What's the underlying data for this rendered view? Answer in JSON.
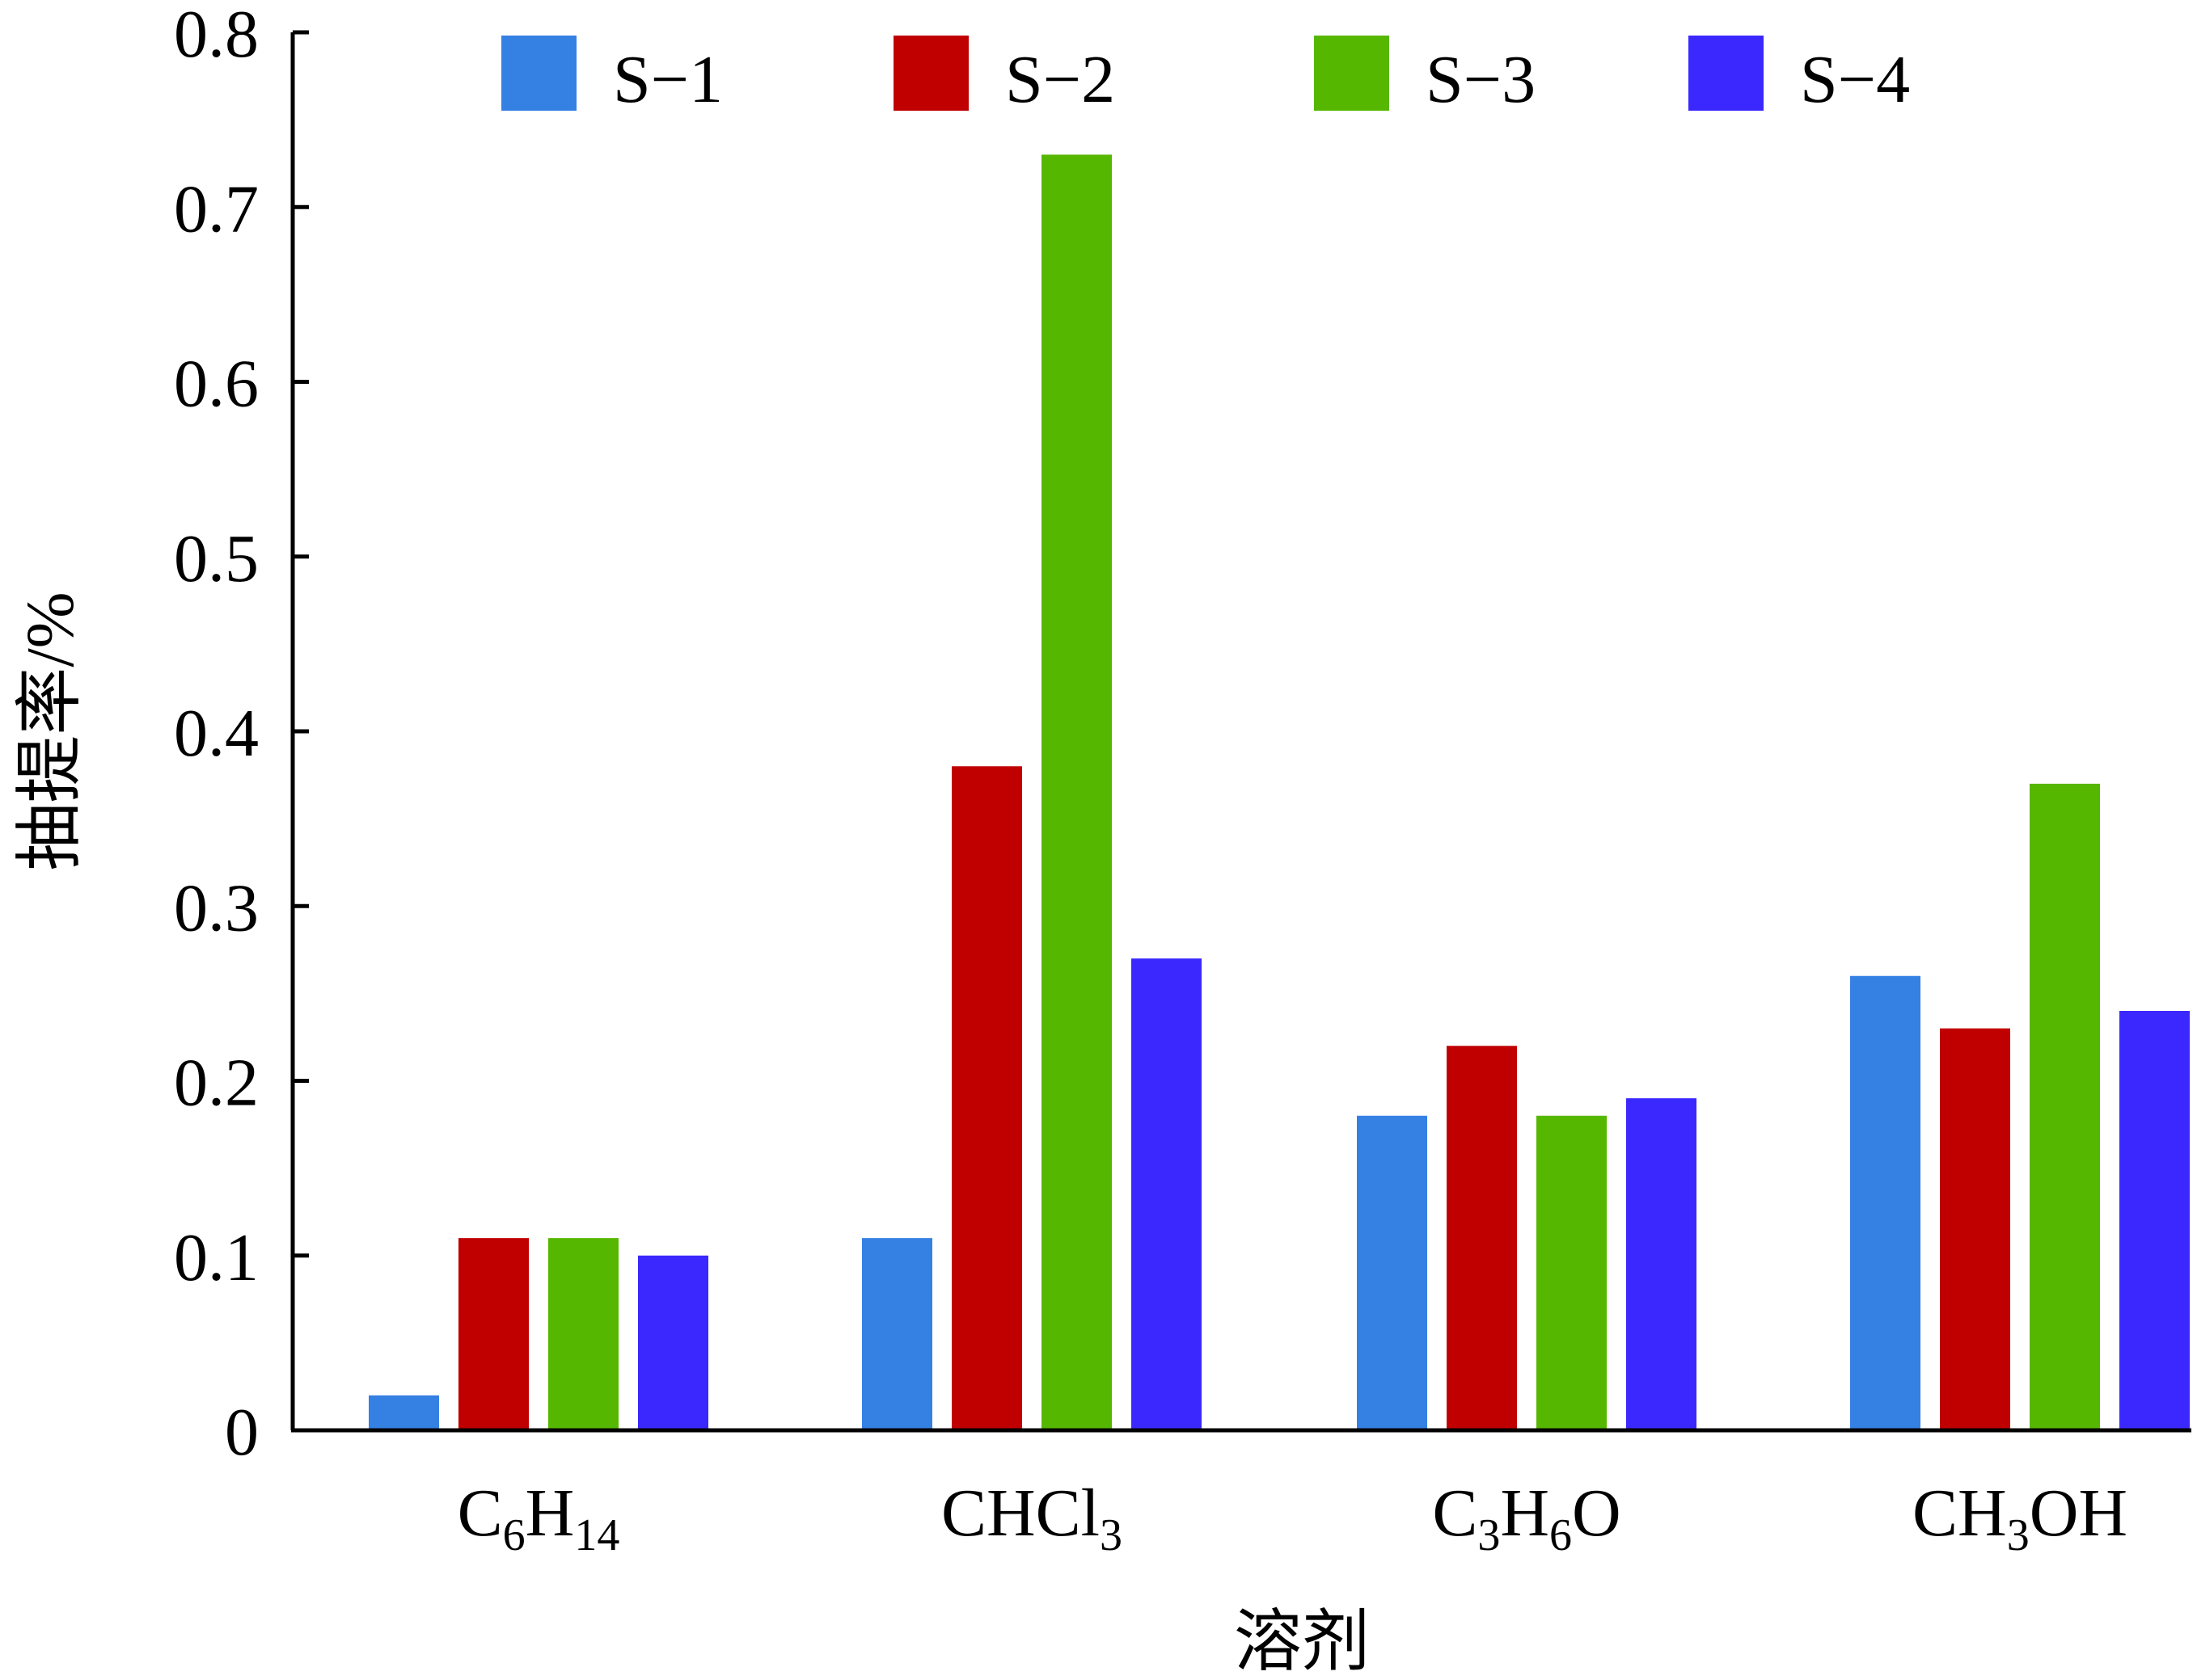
{
  "chart_data": {
    "type": "bar",
    "xlabel": "溶剂",
    "ylabel": "抽提率/%",
    "ylim": [
      0,
      0.8
    ],
    "yticks": [
      "0",
      "0.1",
      "0.2",
      "0.3",
      "0.4",
      "0.5",
      "0.6",
      "0.7",
      "0.8"
    ],
    "categories": [
      {
        "main": "C",
        "sub1": "6",
        "mid": "H",
        "sub2": "14",
        "tail": ""
      },
      {
        "main": "CHCl",
        "sub1": "3",
        "mid": "",
        "sub2": "",
        "tail": ""
      },
      {
        "main": "C",
        "sub1": "3",
        "mid": "H",
        "sub2": "6",
        "tail": "O"
      },
      {
        "main": "CH",
        "sub1": "3",
        "mid": "OH",
        "sub2": "",
        "tail": ""
      }
    ],
    "legend_position": "top",
    "grid": false,
    "series": [
      {
        "name": "S−1",
        "color": "#3580e3",
        "values": [
          0.02,
          0.11,
          0.18,
          0.26
        ]
      },
      {
        "name": "S−2",
        "color": "#c00000",
        "values": [
          0.11,
          0.38,
          0.22,
          0.23
        ]
      },
      {
        "name": "S−3",
        "color": "#56b700",
        "values": [
          0.11,
          0.73,
          0.18,
          0.37
        ]
      },
      {
        "name": "S−4",
        "color": "#3a28ff",
        "values": [
          0.1,
          0.27,
          0.19,
          0.24
        ]
      }
    ]
  }
}
